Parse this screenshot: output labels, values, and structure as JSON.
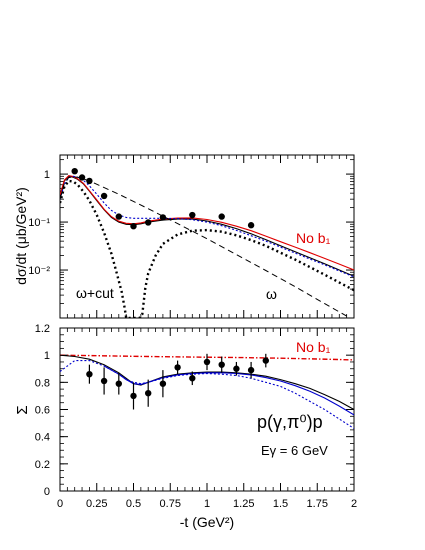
{
  "chart_data": [
    {
      "type": "scatter",
      "y_scale": "log",
      "ylim": [
        0.001,
        2.5
      ],
      "xlim": [
        0,
        2
      ],
      "ylabel": "dσ/dt (μb/GeV²)",
      "xlabel": "",
      "y_tick_labels": [
        "1",
        "10⁻¹",
        "10⁻²"
      ],
      "y_tick_values": [
        1,
        0.1,
        0.01
      ],
      "annotations": {
        "no_b1": "No b₁",
        "omega_cut": "ω+cut",
        "omega": "ω"
      },
      "points": {
        "x": [
          0.1,
          0.15,
          0.2,
          0.3,
          0.4,
          0.5,
          0.6,
          0.7,
          0.9,
          1.1,
          1.3
        ],
        "y": [
          1.15,
          0.85,
          0.72,
          0.35,
          0.13,
          0.082,
          0.098,
          0.125,
          0.14,
          0.13,
          0.086
        ]
      },
      "series": [
        {
          "key": "full",
          "color": "#000000",
          "style": "solid",
          "x": [
            0,
            0.03,
            0.06,
            0.09,
            0.12,
            0.16,
            0.2,
            0.25,
            0.3,
            0.35,
            0.4,
            0.45,
            0.5,
            0.55,
            0.6,
            0.7,
            0.8,
            0.9,
            1.0,
            1.1,
            1.2,
            1.3,
            1.4,
            1.5,
            1.6,
            1.7,
            1.8,
            1.9,
            2.0
          ],
          "y": [
            0.35,
            0.72,
            0.9,
            0.86,
            0.78,
            0.62,
            0.44,
            0.28,
            0.18,
            0.125,
            0.1,
            0.09,
            0.088,
            0.092,
            0.1,
            0.11,
            0.115,
            0.115,
            0.105,
            0.09,
            0.073,
            0.057,
            0.043,
            0.032,
            0.024,
            0.018,
            0.0135,
            0.01,
            0.0074
          ]
        },
        {
          "key": "no_b1",
          "color": "#e00000",
          "style": "solid",
          "x": [
            0,
            0.03,
            0.06,
            0.09,
            0.12,
            0.16,
            0.2,
            0.25,
            0.3,
            0.35,
            0.4,
            0.45,
            0.5,
            0.55,
            0.6,
            0.7,
            0.8,
            0.9,
            1.0,
            1.1,
            1.2,
            1.3,
            1.4,
            1.5,
            1.6,
            1.7,
            1.8,
            1.9,
            2.0
          ],
          "y": [
            0.37,
            0.75,
            0.93,
            0.89,
            0.8,
            0.64,
            0.45,
            0.29,
            0.185,
            0.13,
            0.104,
            0.094,
            0.092,
            0.096,
            0.104,
            0.115,
            0.121,
            0.122,
            0.113,
            0.099,
            0.082,
            0.066,
            0.051,
            0.039,
            0.03,
            0.023,
            0.0175,
            0.0133,
            0.01
          ]
        },
        {
          "key": "blue",
          "color": "#0000cc",
          "style": "dotted",
          "x": [
            0,
            0.03,
            0.06,
            0.09,
            0.12,
            0.16,
            0.2,
            0.25,
            0.3,
            0.35,
            0.4,
            0.45,
            0.5,
            0.55,
            0.6,
            0.7,
            0.8,
            0.9,
            1.0,
            1.1,
            1.2,
            1.3,
            1.4,
            1.5,
            1.6,
            1.7,
            1.8,
            1.9,
            2.0
          ],
          "y": [
            0.3,
            0.62,
            0.85,
            0.9,
            0.86,
            0.74,
            0.57,
            0.38,
            0.25,
            0.175,
            0.14,
            0.125,
            0.12,
            0.12,
            0.12,
            0.12,
            0.118,
            0.112,
            0.1,
            0.084,
            0.067,
            0.052,
            0.04,
            0.03,
            0.0225,
            0.017,
            0.0128,
            0.0096,
            0.0072
          ]
        },
        {
          "key": "omega_cut",
          "color": "#000000",
          "style": "heavy-dotted",
          "x": [
            0,
            0.03,
            0.06,
            0.09,
            0.12,
            0.16,
            0.2,
            0.25,
            0.3,
            0.35,
            0.38,
            0.42,
            0.44,
            0.45,
            0.46,
            0.48,
            0.5,
            0.52,
            0.54,
            0.56,
            0.58,
            0.6,
            0.65,
            0.7,
            0.8,
            0.9,
            1.0,
            1.1,
            1.2,
            1.3,
            1.4,
            1.5,
            1.6,
            1.7,
            1.8,
            1.9,
            2.0
          ],
          "y": [
            0.25,
            0.55,
            0.72,
            0.7,
            0.6,
            0.43,
            0.28,
            0.14,
            0.06,
            0.022,
            0.01,
            0.0035,
            0.0016,
            0.001,
            0.001,
            0.001,
            0.001,
            0.001,
            0.001,
            0.0012,
            0.0042,
            0.0085,
            0.02,
            0.035,
            0.055,
            0.066,
            0.068,
            0.063,
            0.053,
            0.042,
            0.032,
            0.023,
            0.0165,
            0.0115,
            0.008,
            0.0055,
            0.0038
          ]
        },
        {
          "key": "omega",
          "color": "#000000",
          "style": "dashed",
          "x": [
            0,
            0.03,
            0.06,
            0.09,
            0.12,
            0.2,
            0.4,
            0.6,
            0.8,
            1.0,
            1.2,
            1.4,
            1.6,
            1.8,
            2.0
          ],
          "y": [
            0.3,
            0.65,
            0.85,
            0.88,
            0.86,
            0.72,
            0.38,
            0.19,
            0.093,
            0.045,
            0.021,
            0.0098,
            0.0045,
            0.002,
            0.0009
          ]
        }
      ]
    },
    {
      "type": "scatter",
      "ylim": [
        0,
        1.2
      ],
      "xlim": [
        0,
        2
      ],
      "xlabel": "-t (GeV²)",
      "ylabel": "Σ",
      "x_tick_labels": [
        "0",
        "0.25",
        "0.5",
        "0.75",
        "1",
        "1.25",
        "1.5",
        "1.75",
        "2"
      ],
      "x_tick_values": [
        0,
        0.25,
        0.5,
        0.75,
        1,
        1.25,
        1.5,
        1.75,
        2
      ],
      "y_tick_labels": [
        "0",
        "0.2",
        "0.4",
        "0.6",
        "0.8",
        "1",
        "1.2"
      ],
      "y_tick_values": [
        0,
        0.2,
        0.4,
        0.6,
        0.8,
        1,
        1.2
      ],
      "annotations": {
        "no_b1": "No b₁",
        "reaction": "p(γ,π⁰)p",
        "energy": "Eγ = 6 GeV"
      },
      "points": {
        "x": [
          0.2,
          0.3,
          0.4,
          0.5,
          0.6,
          0.7,
          0.8,
          0.9,
          1.0,
          1.1,
          1.2,
          1.3,
          1.4
        ],
        "y": [
          0.86,
          0.81,
          0.79,
          0.7,
          0.72,
          0.79,
          0.91,
          0.83,
          0.95,
          0.93,
          0.9,
          0.89,
          0.96
        ],
        "err": [
          0.07,
          0.1,
          0.08,
          0.1,
          0.1,
          0.1,
          0.05,
          0.05,
          0.06,
          0.06,
          0.05,
          0.06,
          0.05
        ]
      },
      "series": [
        {
          "key": "no_b1",
          "color": "#e00000",
          "style": "dashdot",
          "x": [
            0,
            0.25,
            0.5,
            0.75,
            1.0,
            1.25,
            1.5,
            1.75,
            2.0
          ],
          "y": [
            1.0,
            0.996,
            0.992,
            0.988,
            0.985,
            0.982,
            0.978,
            0.972,
            0.965
          ]
        },
        {
          "key": "full",
          "color": "#000000",
          "style": "solid",
          "x": [
            0,
            0.1,
            0.2,
            0.3,
            0.4,
            0.45,
            0.5,
            0.55,
            0.6,
            0.7,
            0.8,
            0.9,
            1.0,
            1.1,
            1.2,
            1.3,
            1.4,
            1.5,
            1.6,
            1.7,
            1.8,
            1.9,
            2.0
          ],
          "y": [
            1.0,
            0.99,
            0.97,
            0.93,
            0.87,
            0.83,
            0.79,
            0.78,
            0.8,
            0.84,
            0.86,
            0.87,
            0.875,
            0.875,
            0.87,
            0.86,
            0.845,
            0.82,
            0.79,
            0.755,
            0.71,
            0.66,
            0.6
          ]
        },
        {
          "key": "blue",
          "color": "#0000cc",
          "style": "dotted",
          "x": [
            0,
            0.1,
            0.2,
            0.3,
            0.4,
            0.45,
            0.5,
            0.55,
            0.6,
            0.7,
            0.8,
            0.9,
            1.0,
            1.1,
            1.2,
            1.3,
            1.4,
            1.5,
            1.6,
            1.7,
            1.8,
            1.9,
            2.0
          ],
          "y": [
            0.88,
            0.96,
            0.96,
            0.92,
            0.86,
            0.82,
            0.8,
            0.79,
            0.8,
            0.83,
            0.85,
            0.86,
            0.865,
            0.86,
            0.85,
            0.83,
            0.8,
            0.77,
            0.72,
            0.66,
            0.6,
            0.53,
            0.46
          ]
        },
        {
          "key": "no_b1_solid",
          "color": "#0000cc",
          "style": "solid",
          "x": [
            0.3,
            0.4,
            0.45,
            0.5,
            0.55,
            0.6,
            0.7,
            0.8,
            0.9,
            1.0,
            1.1,
            1.2,
            1.3,
            1.4,
            1.5,
            1.6,
            1.7,
            1.8,
            1.9,
            2.0
          ],
          "y": [
            0.92,
            0.86,
            0.82,
            0.79,
            0.785,
            0.8,
            0.835,
            0.855,
            0.865,
            0.87,
            0.87,
            0.865,
            0.855,
            0.835,
            0.81,
            0.775,
            0.735,
            0.685,
            0.625,
            0.56
          ]
        }
      ]
    }
  ]
}
